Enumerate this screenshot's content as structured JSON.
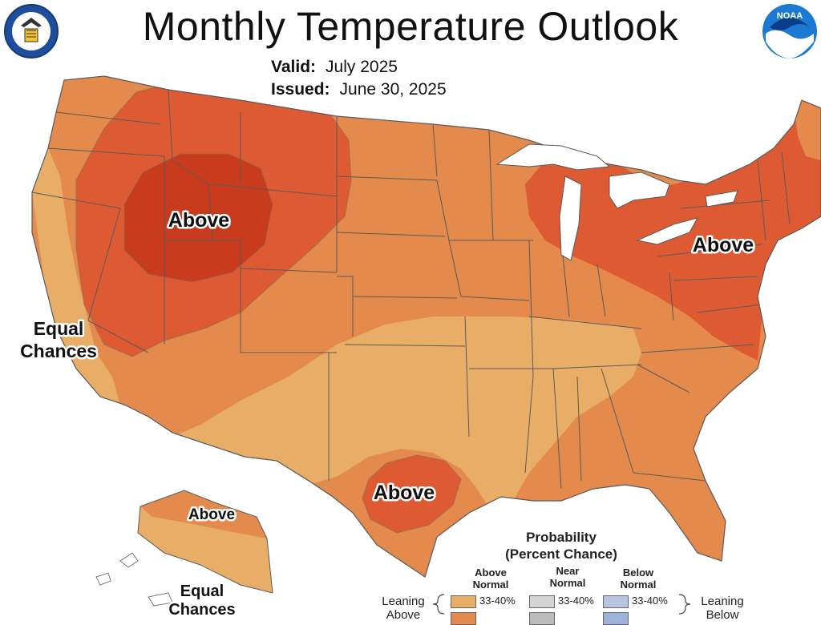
{
  "header": {
    "title": "Monthly Temperature Outlook",
    "valid_label": "Valid:",
    "valid_value": "July 2025",
    "issued_label": "Issued:",
    "issued_value": "June 30, 2025"
  },
  "logos": {
    "left": "department-of-commerce-seal",
    "right": "noaa-logo",
    "right_text": "NOAA"
  },
  "map_labels": {
    "northwest": "Above",
    "great_lakes_northeast": "Above",
    "texas": "Above",
    "alaska_north": "Above",
    "west_coast_line1": "Equal",
    "west_coast_line2": "Chances",
    "alaska_south_line1": "Equal",
    "alaska_south_line2": "Chances"
  },
  "legend": {
    "title_line1": "Probability",
    "title_line2": "(Percent Chance)",
    "columns": [
      {
        "line1": "Above",
        "line2": "Normal",
        "color": "#e8ad66"
      },
      {
        "line1": "Near",
        "line2": "Normal",
        "color": "#d4d4d4"
      },
      {
        "line1": "Below",
        "line2": "Normal",
        "color": "#b8c6e2"
      }
    ],
    "row1_value": "33-40%",
    "lean_left_line1": "Leaning",
    "lean_left_line2": "Above",
    "lean_right_line1": "Leaning",
    "lean_right_line2": "Below"
  },
  "colors": {
    "above_33_40": "#e8ad66",
    "above_40_50": "#e48a4c",
    "above_50_60": "#de5a33",
    "above_60_70": "#c93b1d",
    "state_borders": "#5a5a5a"
  }
}
